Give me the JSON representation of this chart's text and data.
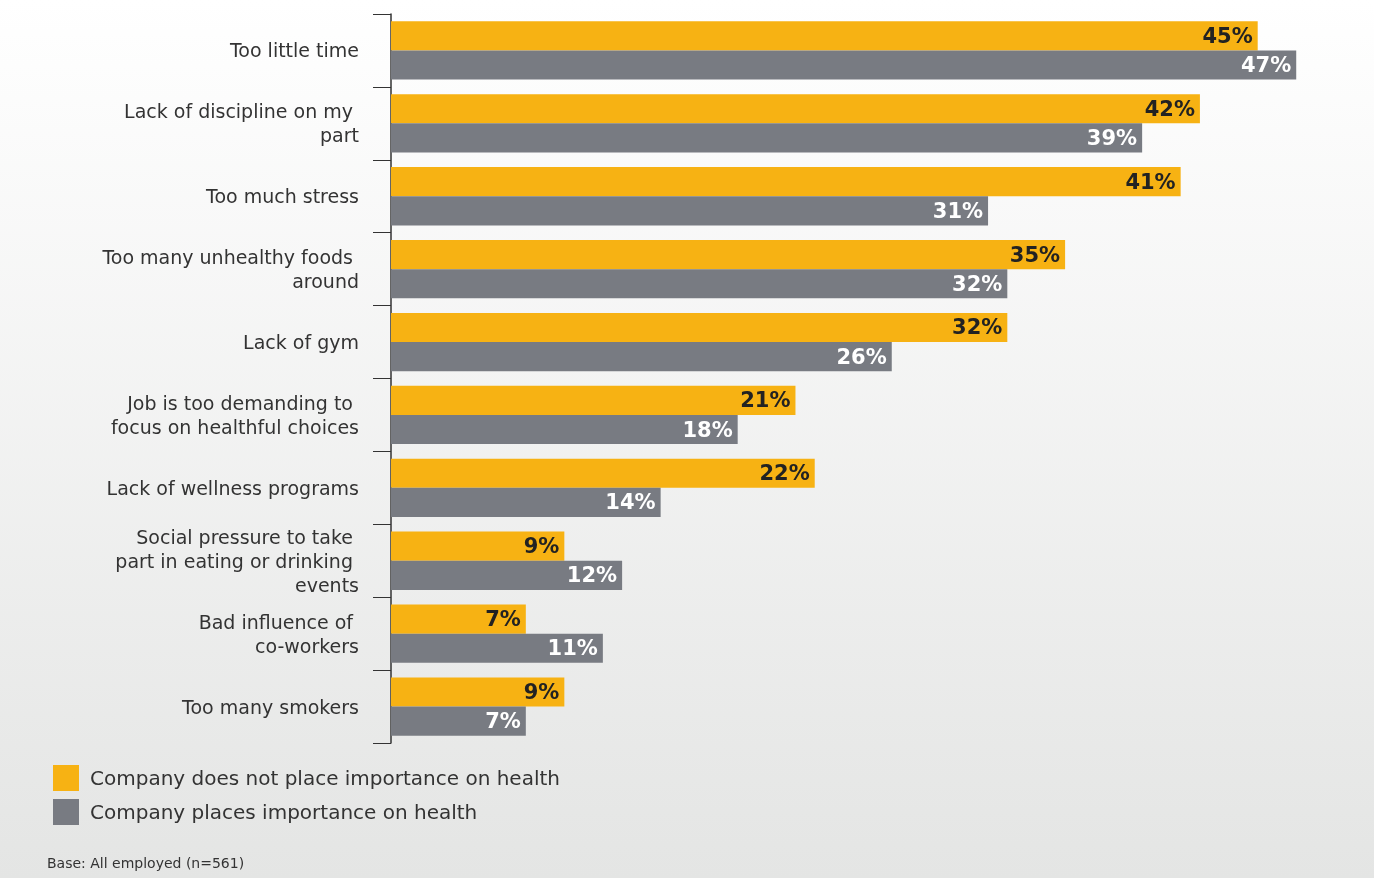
{
  "chart_data": {
    "type": "bar",
    "orientation": "horizontal",
    "categories": [
      "Too little time",
      "Lack of discipline on my part",
      "Too much stress",
      "Too many unhealthy foods around",
      "Lack of gym",
      "Job is too demanding to focus on healthful choices",
      "Lack of wellness programs",
      "Social pressure to take part in eating or drinking events",
      "Bad influence of co-workers",
      "Too many smokers"
    ],
    "series": [
      {
        "name": "Company does not place importance on health",
        "color": "#f7b213",
        "values": [
          45,
          42,
          41,
          35,
          32,
          21,
          22,
          9,
          7,
          9
        ],
        "value_labels": [
          "45%",
          "42%",
          "41%",
          "35%",
          "32%",
          "21%",
          "22%",
          "9%",
          "7%",
          "9%"
        ]
      },
      {
        "name": "Company places importance on health",
        "color": "#787b82",
        "values": [
          47,
          39,
          31,
          32,
          26,
          18,
          14,
          12,
          11,
          7
        ],
        "value_labels": [
          "47%",
          "39%",
          "31%",
          "32%",
          "26%",
          "18%",
          "14%",
          "12%",
          "11%",
          "7%"
        ]
      }
    ],
    "legend": "bottom left",
    "grid": false,
    "annotations": [
      "Base: All employed (n=561)"
    ]
  }
}
